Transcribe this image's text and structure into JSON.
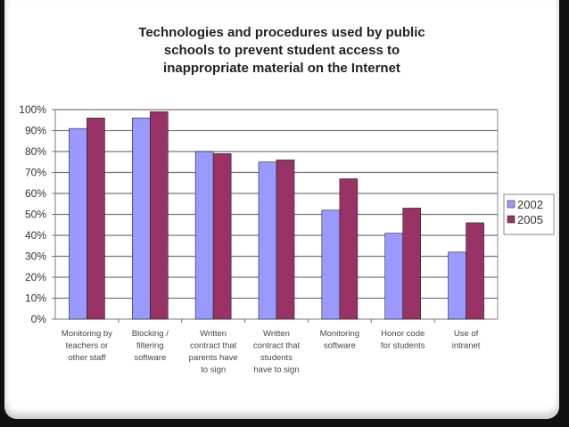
{
  "chart_data": {
    "type": "bar",
    "title": [
      "Technologies and procedures used by public",
      "schools to prevent student access to",
      "inappropriate material on the Internet"
    ],
    "categories": [
      [
        "Monitoring by",
        "teachers or",
        "other staff"
      ],
      [
        "Blocking /",
        "filtering",
        "software"
      ],
      [
        "Written",
        "contract that",
        "parents have",
        "to sign"
      ],
      [
        "Written",
        "contract that",
        "students",
        "have to sign"
      ],
      [
        "Monitoring",
        "software"
      ],
      [
        "Honor code",
        "for students"
      ],
      [
        "Use of",
        "intranet"
      ]
    ],
    "series": [
      {
        "name": "2002",
        "color": "#9999ff",
        "values": [
          91,
          96,
          80,
          75,
          52,
          41,
          32
        ]
      },
      {
        "name": "2005",
        "color": "#993366",
        "values": [
          96,
          99,
          79,
          76,
          67,
          53,
          46
        ]
      }
    ],
    "ylim": [
      0,
      100
    ],
    "yticks": [
      "0%",
      "10%",
      "20%",
      "30%",
      "40%",
      "50%",
      "60%",
      "70%",
      "80%",
      "90%",
      "100%"
    ],
    "grid": true,
    "legend": "right"
  }
}
